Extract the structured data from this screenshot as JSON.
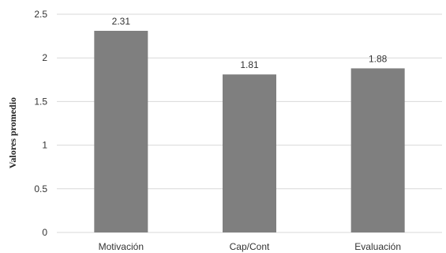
{
  "chart_data": {
    "type": "bar",
    "categories": [
      "Motivación",
      "Cap/Cont",
      "Evaluación"
    ],
    "values": [
      2.31,
      1.81,
      1.88
    ],
    "data_labels": [
      "2.31",
      "1.81",
      "1.88"
    ],
    "title": "",
    "xlabel": "",
    "ylabel": "Valores promedio",
    "ylim": [
      0,
      2.5
    ],
    "yticks": [
      0,
      0.5,
      1,
      1.5,
      2,
      2.5
    ],
    "ytick_labels": [
      "0",
      "0.5",
      "1",
      "1.5",
      "2",
      "2.5"
    ],
    "bar_color": "#7f7f7f",
    "grid_color": "#d9d9d9",
    "grid": true,
    "legend": "none"
  }
}
